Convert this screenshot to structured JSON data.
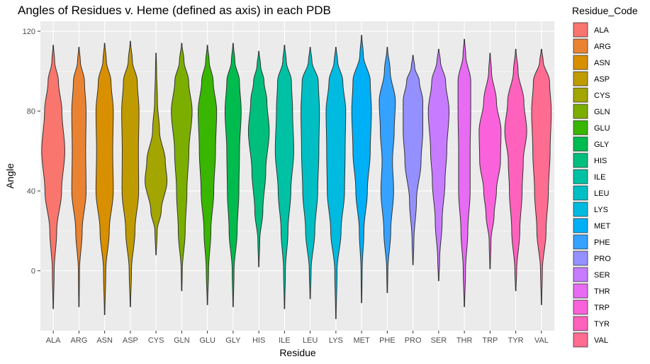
{
  "chart_data": {
    "type": "violin",
    "title": "Angles of Residues v. Heme (defined as axis) in each PDB",
    "xlabel": "Residue",
    "ylabel": "Angle",
    "ylim": [
      -30,
      125
    ],
    "yticks": [
      0,
      40,
      80,
      120
    ],
    "grid": true,
    "legend_title": "Residue_Code",
    "legend_position": "right",
    "categories": [
      "ALA",
      "ARG",
      "ASN",
      "ASP",
      "CYS",
      "GLN",
      "GLU",
      "GLY",
      "HIS",
      "ILE",
      "LEU",
      "LYS",
      "MET",
      "PHE",
      "PRO",
      "SER",
      "THR",
      "TRP",
      "TYR",
      "VAL"
    ],
    "colors": [
      "#F8766D",
      "#EA8331",
      "#D89000",
      "#C09B00",
      "#A3A500",
      "#7CAE00",
      "#39B600",
      "#00BB4E",
      "#00BF7D",
      "#00C1A3",
      "#00BFC4",
      "#00BAE0",
      "#00B0F6",
      "#35A2FF",
      "#9590FF",
      "#C77CFF",
      "#E76BF3",
      "#FA62DB",
      "#FF62BC",
      "#FF6C91"
    ],
    "violins": [
      {
        "name": "ALA",
        "min": -19,
        "max": 113,
        "density": [
          [
            -19,
            0.02
          ],
          [
            0,
            0.08
          ],
          [
            20,
            0.3
          ],
          [
            40,
            0.72
          ],
          [
            60,
            1.0
          ],
          [
            80,
            0.75
          ],
          [
            95,
            0.45
          ],
          [
            105,
            0.12
          ],
          [
            113,
            0.02
          ]
        ]
      },
      {
        "name": "ARG",
        "min": -18,
        "max": 112,
        "density": [
          [
            -18,
            0.02
          ],
          [
            0,
            0.05
          ],
          [
            20,
            0.28
          ],
          [
            40,
            0.62
          ],
          [
            60,
            0.58
          ],
          [
            80,
            0.62
          ],
          [
            95,
            0.48
          ],
          [
            105,
            0.12
          ],
          [
            112,
            0.02
          ]
        ]
      },
      {
        "name": "ASN",
        "min": -22,
        "max": 114,
        "density": [
          [
            -22,
            0.02
          ],
          [
            0,
            0.1
          ],
          [
            20,
            0.4
          ],
          [
            40,
            0.75
          ],
          [
            60,
            0.7
          ],
          [
            80,
            0.75
          ],
          [
            95,
            0.55
          ],
          [
            105,
            0.15
          ],
          [
            114,
            0.02
          ]
        ]
      },
      {
        "name": "ASP",
        "min": -18,
        "max": 115,
        "density": [
          [
            -18,
            0.02
          ],
          [
            0,
            0.1
          ],
          [
            20,
            0.4
          ],
          [
            40,
            0.72
          ],
          [
            60,
            0.7
          ],
          [
            80,
            0.75
          ],
          [
            95,
            0.6
          ],
          [
            105,
            0.18
          ],
          [
            115,
            0.02
          ]
        ]
      },
      {
        "name": "CYS",
        "min": 8,
        "max": 109,
        "density": [
          [
            8,
            0.02
          ],
          [
            20,
            0.1
          ],
          [
            30,
            0.45
          ],
          [
            45,
            0.95
          ],
          [
            55,
            0.8
          ],
          [
            70,
            0.3
          ],
          [
            85,
            0.12
          ],
          [
            100,
            0.05
          ],
          [
            109,
            0.02
          ]
        ]
      },
      {
        "name": "GLN",
        "min": -10,
        "max": 114,
        "density": [
          [
            -10,
            0.02
          ],
          [
            0,
            0.05
          ],
          [
            20,
            0.3
          ],
          [
            40,
            0.45
          ],
          [
            60,
            0.62
          ],
          [
            80,
            0.9
          ],
          [
            95,
            0.6
          ],
          [
            105,
            0.2
          ],
          [
            114,
            0.02
          ]
        ]
      },
      {
        "name": "GLU",
        "min": -17,
        "max": 113,
        "density": [
          [
            -17,
            0.02
          ],
          [
            0,
            0.1
          ],
          [
            20,
            0.3
          ],
          [
            40,
            0.55
          ],
          [
            60,
            0.7
          ],
          [
            80,
            0.8
          ],
          [
            95,
            0.5
          ],
          [
            105,
            0.15
          ],
          [
            113,
            0.02
          ]
        ]
      },
      {
        "name": "GLY",
        "min": -18,
        "max": 114,
        "density": [
          [
            -18,
            0.02
          ],
          [
            0,
            0.08
          ],
          [
            20,
            0.35
          ],
          [
            40,
            0.5
          ],
          [
            60,
            0.55
          ],
          [
            80,
            0.7
          ],
          [
            95,
            0.55
          ],
          [
            105,
            0.15
          ],
          [
            114,
            0.02
          ]
        ]
      },
      {
        "name": "HIS",
        "min": 2,
        "max": 110,
        "density": [
          [
            2,
            0.02
          ],
          [
            15,
            0.08
          ],
          [
            30,
            0.35
          ],
          [
            50,
            0.6
          ],
          [
            70,
            0.9
          ],
          [
            85,
            0.7
          ],
          [
            95,
            0.45
          ],
          [
            103,
            0.15
          ],
          [
            110,
            0.02
          ]
        ]
      },
      {
        "name": "ILE",
        "min": -19,
        "max": 113,
        "density": [
          [
            -19,
            0.02
          ],
          [
            0,
            0.08
          ],
          [
            20,
            0.3
          ],
          [
            40,
            0.55
          ],
          [
            60,
            0.8
          ],
          [
            80,
            0.7
          ],
          [
            95,
            0.6
          ],
          [
            105,
            0.15
          ],
          [
            113,
            0.02
          ]
        ]
      },
      {
        "name": "LEU",
        "min": -14,
        "max": 112,
        "density": [
          [
            -14,
            0.02
          ],
          [
            0,
            0.08
          ],
          [
            20,
            0.4
          ],
          [
            40,
            0.65
          ],
          [
            60,
            0.75
          ],
          [
            80,
            0.8
          ],
          [
            95,
            0.7
          ],
          [
            105,
            0.15
          ],
          [
            112,
            0.02
          ]
        ]
      },
      {
        "name": "LYS",
        "min": -24,
        "max": 112,
        "density": [
          [
            -24,
            0.02
          ],
          [
            0,
            0.1
          ],
          [
            20,
            0.45
          ],
          [
            40,
            0.75
          ],
          [
            60,
            0.8
          ],
          [
            80,
            0.85
          ],
          [
            95,
            0.6
          ],
          [
            105,
            0.15
          ],
          [
            112,
            0.02
          ]
        ]
      },
      {
        "name": "MET",
        "min": -16,
        "max": 118,
        "density": [
          [
            -16,
            0.02
          ],
          [
            0,
            0.05
          ],
          [
            20,
            0.2
          ],
          [
            40,
            0.5
          ],
          [
            60,
            0.75
          ],
          [
            80,
            0.85
          ],
          [
            95,
            0.75
          ],
          [
            108,
            0.15
          ],
          [
            118,
            0.02
          ]
        ]
      },
      {
        "name": "PHE",
        "min": -11,
        "max": 112,
        "density": [
          [
            -11,
            0.02
          ],
          [
            0,
            0.05
          ],
          [
            20,
            0.3
          ],
          [
            40,
            0.55
          ],
          [
            55,
            0.45
          ],
          [
            70,
            0.6
          ],
          [
            85,
            0.7
          ],
          [
            100,
            0.25
          ],
          [
            112,
            0.02
          ]
        ]
      },
      {
        "name": "PRO",
        "min": 3,
        "max": 108,
        "density": [
          [
            3,
            0.02
          ],
          [
            15,
            0.08
          ],
          [
            35,
            0.3
          ],
          [
            55,
            0.7
          ],
          [
            70,
            0.85
          ],
          [
            85,
            0.85
          ],
          [
            95,
            0.55
          ],
          [
            102,
            0.15
          ],
          [
            108,
            0.02
          ]
        ]
      },
      {
        "name": "SER",
        "min": -5,
        "max": 111,
        "density": [
          [
            -5,
            0.02
          ],
          [
            5,
            0.08
          ],
          [
            25,
            0.3
          ],
          [
            45,
            0.55
          ],
          [
            60,
            0.7
          ],
          [
            80,
            0.9
          ],
          [
            95,
            0.6
          ],
          [
            105,
            0.15
          ],
          [
            111,
            0.02
          ]
        ]
      },
      {
        "name": "THR",
        "min": -18,
        "max": 116,
        "density": [
          [
            -18,
            0.02
          ],
          [
            0,
            0.1
          ],
          [
            20,
            0.3
          ],
          [
            40,
            0.5
          ],
          [
            60,
            0.5
          ],
          [
            80,
            0.55
          ],
          [
            95,
            0.55
          ],
          [
            108,
            0.12
          ],
          [
            116,
            0.02
          ]
        ]
      },
      {
        "name": "TRP",
        "min": 1,
        "max": 109,
        "density": [
          [
            1,
            0.02
          ],
          [
            15,
            0.08
          ],
          [
            28,
            0.35
          ],
          [
            40,
            0.55
          ],
          [
            55,
            0.9
          ],
          [
            70,
            0.95
          ],
          [
            85,
            0.55
          ],
          [
            100,
            0.12
          ],
          [
            109,
            0.02
          ]
        ]
      },
      {
        "name": "TYR",
        "min": -10,
        "max": 111,
        "density": [
          [
            -10,
            0.02
          ],
          [
            0,
            0.08
          ],
          [
            20,
            0.35
          ],
          [
            40,
            0.55
          ],
          [
            55,
            0.65
          ],
          [
            70,
            0.95
          ],
          [
            85,
            0.7
          ],
          [
            100,
            0.2
          ],
          [
            111,
            0.02
          ]
        ]
      },
      {
        "name": "VAL",
        "min": -17,
        "max": 111,
        "density": [
          [
            -17,
            0.02
          ],
          [
            0,
            0.08
          ],
          [
            20,
            0.4
          ],
          [
            40,
            0.6
          ],
          [
            60,
            0.75
          ],
          [
            80,
            0.85
          ],
          [
            95,
            0.7
          ],
          [
            105,
            0.15
          ],
          [
            111,
            0.02
          ]
        ]
      }
    ]
  }
}
